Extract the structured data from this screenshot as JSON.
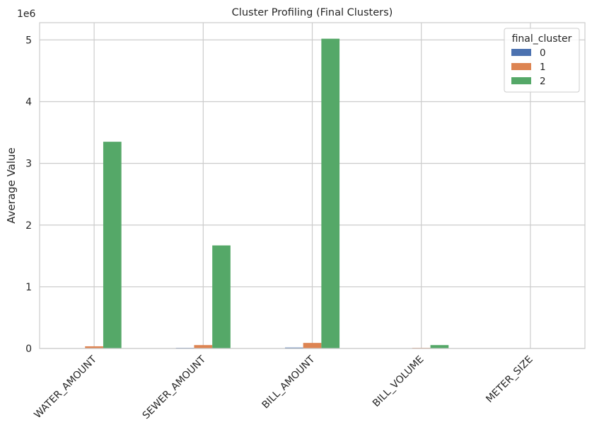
{
  "chart_data": {
    "type": "bar",
    "title": "Cluster Profiling (Final Clusters)",
    "xlabel": "",
    "ylabel": "Average Value",
    "y_offset_text": "1e6",
    "y_scale_factor": 1000000,
    "categories": [
      "WATER_AMOUNT",
      "SEWER_AMOUNT",
      "BILL_AMOUNT",
      "BILL_VOLUME",
      "METER_SIZE"
    ],
    "series": [
      {
        "name": "0",
        "color": "#4c72b0",
        "values": [
          5000,
          10000,
          15000,
          2000,
          1
        ]
      },
      {
        "name": "1",
        "color": "#dd8452",
        "values": [
          35000,
          55000,
          90000,
          10000,
          1
        ]
      },
      {
        "name": "2",
        "color": "#55a868",
        "values": [
          3350000,
          1670000,
          5020000,
          55000,
          1
        ]
      }
    ],
    "ylim": [
      0,
      5280000
    ],
    "yticks": [
      0,
      1000000,
      2000000,
      3000000,
      4000000,
      5000000
    ],
    "ytick_labels": [
      "0",
      "1",
      "2",
      "3",
      "4",
      "5"
    ],
    "grid": true,
    "legend": {
      "title": "final_cluster",
      "placement": "top-right"
    }
  }
}
